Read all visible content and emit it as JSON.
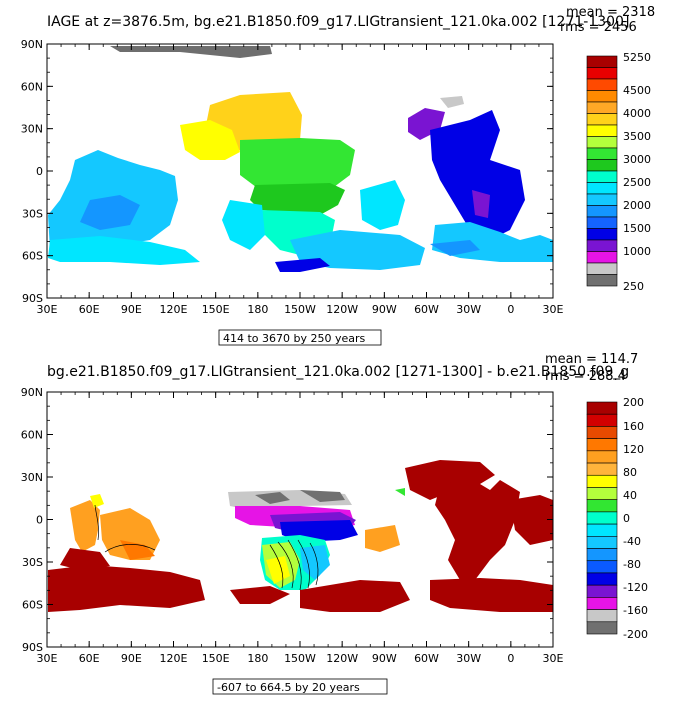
{
  "panels": [
    {
      "title": "IAGE at z=3876.5m, bg.e21.B1850.f09_g17.LIGtransient_121.0ka.002 [1271-1300]",
      "mean": "mean = 2318",
      "rms": "rms = 2456",
      "range_label": "414 to 3670 by 250 years",
      "lat_ticks": [
        "90N",
        "60N",
        "30N",
        "0",
        "30S",
        "60S",
        "90S"
      ],
      "lon_ticks": [
        "30E",
        "60E",
        "90E",
        "120E",
        "150E",
        "180",
        "150W",
        "120W",
        "90W",
        "60W",
        "30W",
        "0",
        "30E"
      ],
      "colorbar_labels": [
        "5250",
        "4500",
        "4000",
        "3500",
        "3000",
        "2500",
        "2000",
        "1500",
        "1000",
        "250"
      ],
      "colorbar_colors": [
        "#a80000",
        "#e80000",
        "#ff4a00",
        "#ff8a00",
        "#ffa826",
        "#ffd21a",
        "#ffff00",
        "#b4ff3c",
        "#33e633",
        "#1ec81e",
        "#00ffcc",
        "#00e6ff",
        "#14c8ff",
        "#1496ff",
        "#1464ff",
        "#0000e6",
        "#7a14d2",
        "#e614e6",
        "#c8c8c8",
        "#707070"
      ]
    },
    {
      "title": "bg.e21.B1850.f09_g17.LIGtransient_121.0ka.002 [1271-1300] - b.e21.B1850.f09_g",
      "mean": "mean = 114.7",
      "rms": "rms = 288.4",
      "range_label": "-607 to 664.5 by 20 years",
      "lat_ticks": [
        "90N",
        "60N",
        "30N",
        "0",
        "30S",
        "60S",
        "90S"
      ],
      "lon_ticks": [
        "30E",
        "60E",
        "90E",
        "120E",
        "150E",
        "180",
        "150W",
        "120W",
        "90W",
        "60W",
        "30W",
        "0",
        "30E"
      ],
      "colorbar_labels": [
        "200",
        "160",
        "120",
        "80",
        "40",
        "0",
        "-40",
        "-80",
        "-120",
        "-160",
        "-200"
      ],
      "colorbar_colors": [
        "#a80000",
        "#d20000",
        "#e84a00",
        "#ff7800",
        "#ffa020",
        "#ffb43c",
        "#ffff00",
        "#b4ff3c",
        "#32e632",
        "#00ffcc",
        "#00e6ff",
        "#14c8ff",
        "#1496ff",
        "#0a5aff",
        "#0000e6",
        "#7a14d2",
        "#e614e6",
        "#c8c8c8",
        "#707070"
      ]
    }
  ]
}
